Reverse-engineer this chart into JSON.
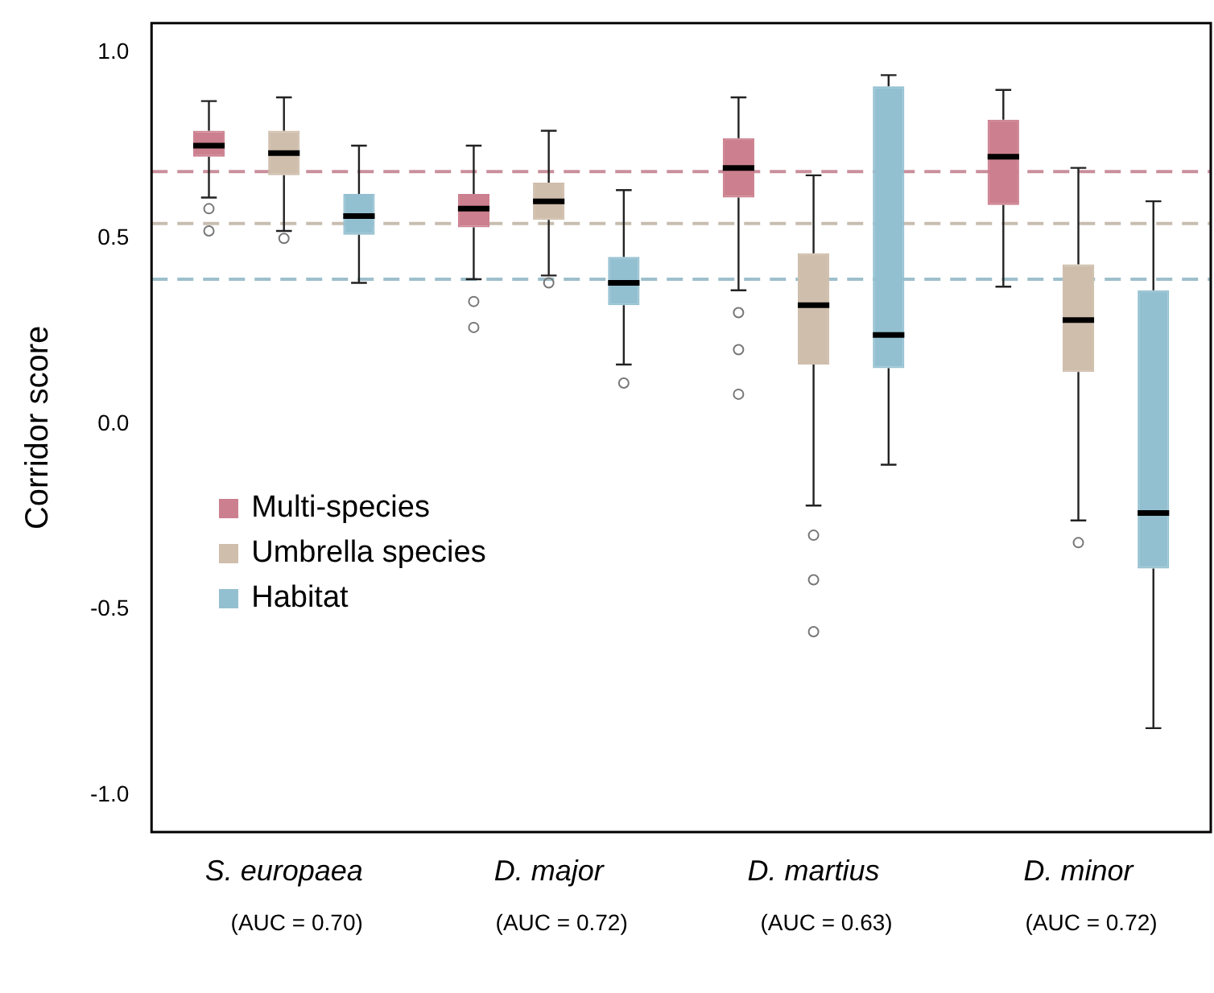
{
  "chart_data": {
    "type": "box",
    "ylabel": "Corridor score",
    "categories": [
      "S. europaea",
      "D. major",
      "D. martius",
      "D. minor"
    ],
    "ylim": [
      -1.1,
      1.08
    ],
    "yticks": [
      {
        "value": -1,
        "label": "-1.0"
      },
      {
        "value": -0.5,
        "label": "-0.5"
      },
      {
        "value": 0,
        "label": "0.0"
      },
      {
        "value": 0.5,
        "label": "0.5"
      },
      {
        "value": 1,
        "label": "1.0"
      }
    ],
    "grid": false,
    "legend": "left",
    "series": [
      {
        "name": "Multi-species",
        "color": "#cc7f8e",
        "boxes": [
          {
            "low": 0.61,
            "q1": 0.72,
            "median": 0.75,
            "q3": 0.79,
            "high": 0.87,
            "outliers": [
              0.58,
              0.52
            ]
          },
          {
            "low": 0.39,
            "q1": 0.53,
            "median": 0.58,
            "q3": 0.62,
            "high": 0.75,
            "outliers": [
              0.33,
              0.26
            ]
          },
          {
            "low": 0.36,
            "q1": 0.61,
            "median": 0.69,
            "q3": 0.77,
            "high": 0.88,
            "outliers": [
              0.3,
              0.2,
              0.08
            ]
          },
          {
            "low": 0.37,
            "q1": 0.59,
            "median": 0.72,
            "q3": 0.82,
            "high": 0.9
          }
        ]
      },
      {
        "name": "Umbrella species",
        "color": "#cfbeac",
        "boxes": [
          {
            "low": 0.52,
            "q1": 0.67,
            "median": 0.73,
            "q3": 0.79,
            "high": 0.88,
            "outliers": [
              0.5
            ]
          },
          {
            "low": 0.4,
            "q1": 0.55,
            "median": 0.6,
            "q3": 0.65,
            "high": 0.79,
            "outliers": [
              0.38
            ]
          },
          {
            "low": -0.22,
            "q1": 0.16,
            "median": 0.32,
            "q3": 0.46,
            "high": 0.67,
            "outliers": [
              -0.3,
              -0.42,
              -0.56
            ]
          },
          {
            "low": -0.26,
            "q1": 0.14,
            "median": 0.28,
            "q3": 0.43,
            "high": 0.69,
            "outliers": [
              -0.32
            ]
          }
        ]
      },
      {
        "name": "Habitat",
        "color": "#93c0d0",
        "boxes": [
          {
            "low": 0.38,
            "q1": 0.51,
            "median": 0.56,
            "q3": 0.62,
            "high": 0.75
          },
          {
            "low": 0.16,
            "q1": 0.32,
            "median": 0.38,
            "q3": 0.45,
            "high": 0.63,
            "outliers": [
              0.11
            ]
          },
          {
            "low": -0.11,
            "q1": 0.15,
            "median": 0.24,
            "q3": 0.91,
            "high": 0.94
          },
          {
            "low": -0.82,
            "q1": -0.39,
            "median": -0.24,
            "q3": 0.36,
            "high": 0.6
          }
        ]
      }
    ],
    "ref_lines": [
      {
        "axis": "y",
        "value": 0.68,
        "color": "#c98f9c",
        "line_style": "dashed"
      },
      {
        "axis": "y",
        "value": 0.54,
        "color": "#c8bdb0",
        "line_style": "dashed"
      },
      {
        "axis": "y",
        "value": 0.39,
        "color": "#9dbfcc",
        "line_style": "dashed"
      }
    ],
    "annotations": [
      "(AUC = 0.70)",
      "(AUC = 0.72)",
      "(AUC = 0.63)",
      "(AUC = 0.72)"
    ]
  }
}
